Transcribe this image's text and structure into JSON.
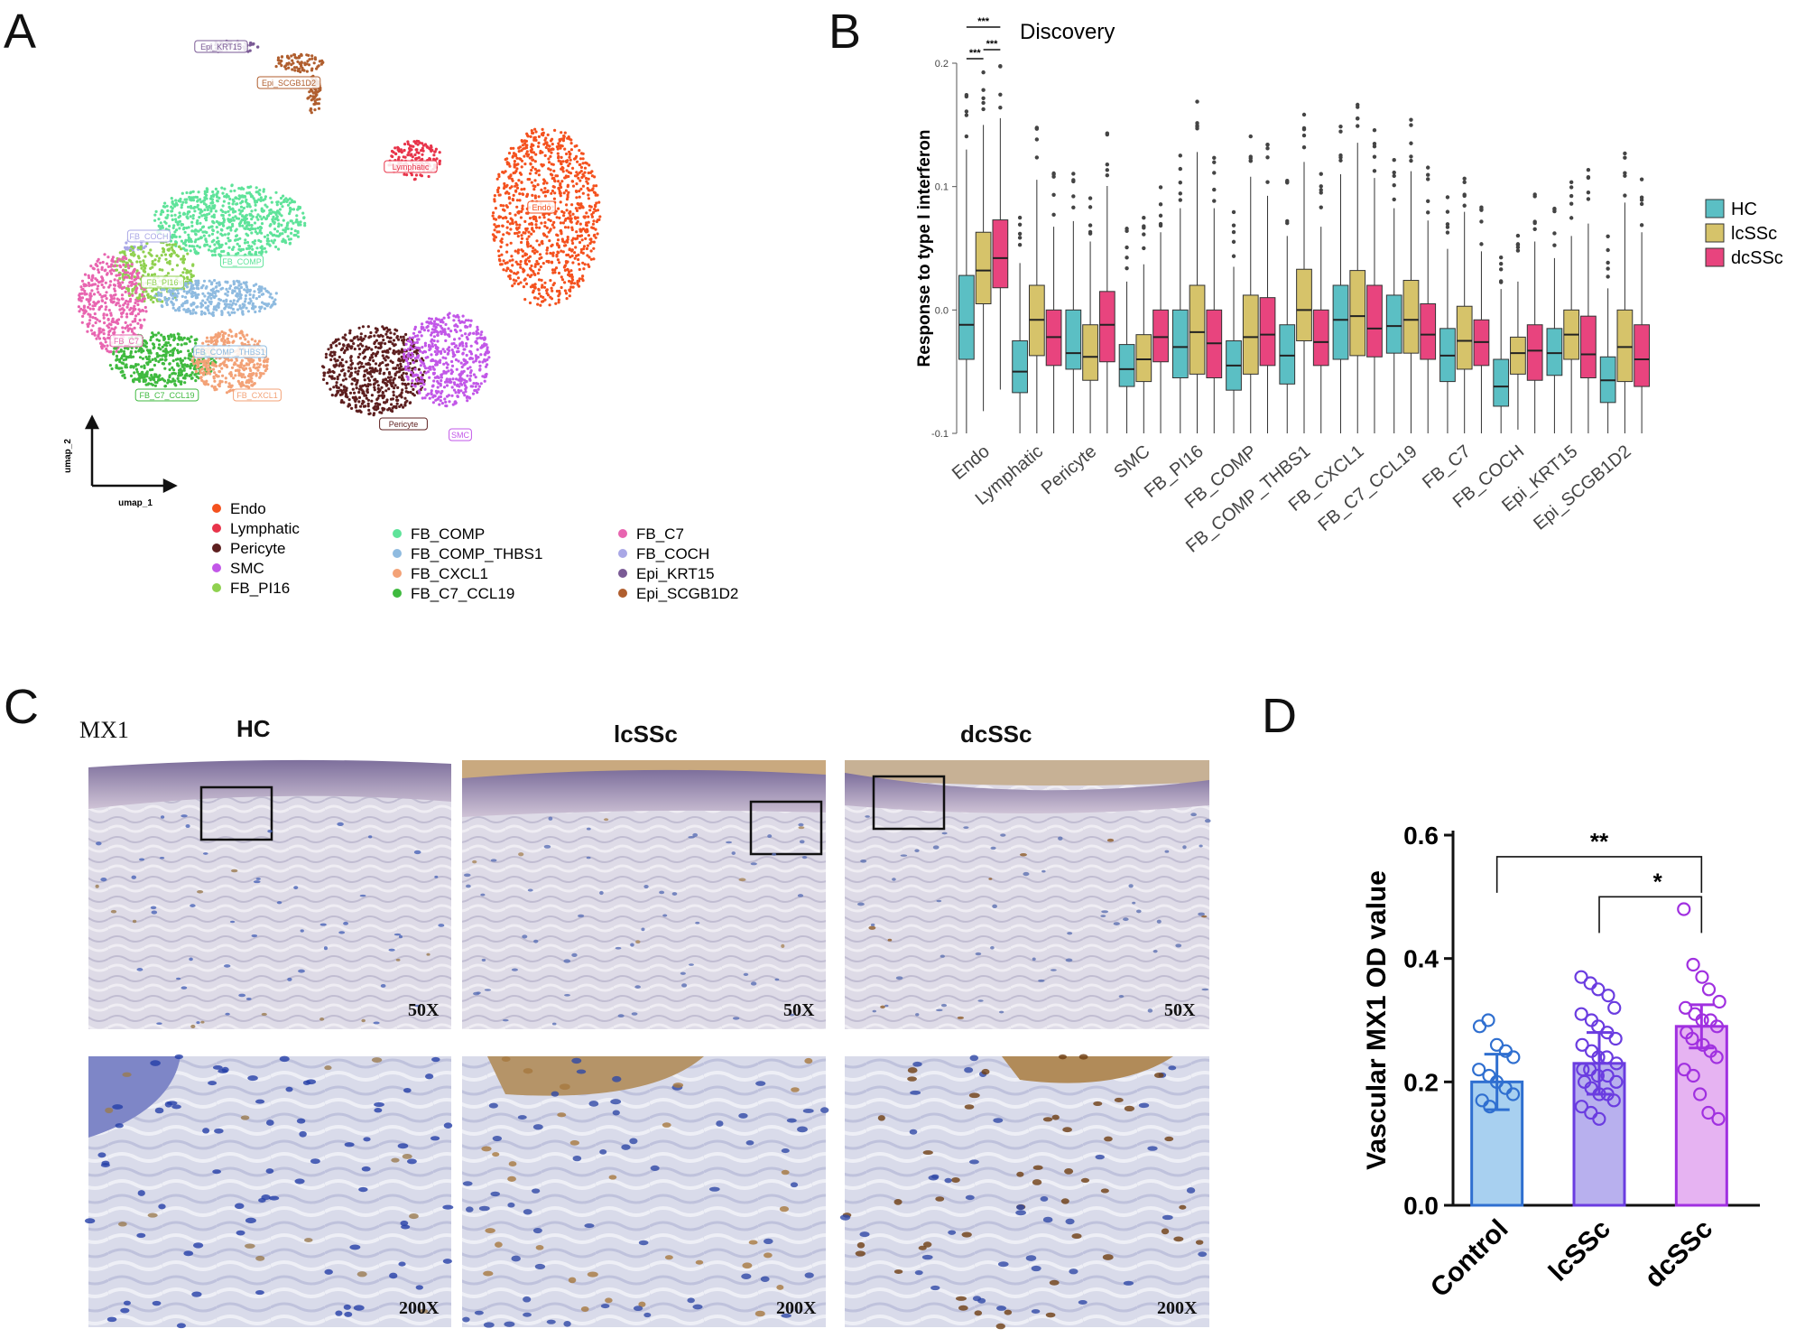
{
  "panel_labels": {
    "a": "A",
    "b": "B",
    "c": "C",
    "d": "D"
  },
  "umap": {
    "axis_x": "umap_1",
    "axis_y": "umap_2",
    "colors": {
      "Endo": "#f4511e",
      "Lymphatic": "#e8344a",
      "Pericyte": "#5d1f1f",
      "SMC": "#c257e8",
      "FB_PI16": "#8fd14f",
      "FB_COMP": "#5fe39a",
      "FB_COMP_THBS1": "#8fbbe0",
      "FB_CXCL1": "#f3a277",
      "FB_C7_CCL19": "#3fba3f",
      "FB_C7": "#e865b0",
      "FB_COCH": "#a9a7e6",
      "Epi_KRT15": "#7a5a95",
      "Epi_SCGB1D2": "#b05e2e"
    },
    "cluster_labels": [
      "Epi_KRT15",
      "Epi_SCGB1D2",
      "Lymphatic",
      "Endo",
      "FB_COCH",
      "FB_COMP",
      "FB_PI16",
      "FB_C7",
      "FB_COMP_THBS1",
      "FB_C7_CCL19",
      "FB_CXCL1",
      "Pericyte",
      "SMC"
    ],
    "legend_col1": [
      "Endo",
      "Lymphatic",
      "Pericyte",
      "SMC",
      "FB_PI16"
    ],
    "legend_col2": [
      "FB_COMP",
      "FB_COMP_THBS1",
      "FB_CXCL1",
      "FB_C7_CCL19"
    ],
    "legend_col3": [
      "FB_C7",
      "FB_COCH",
      "Epi_KRT15",
      "Epi_SCGB1D2"
    ]
  },
  "chart_data": [
    {
      "type": "box",
      "title": "Discovery",
      "ylabel": "Response to type I interferon",
      "ylim": [
        -0.1,
        0.2
      ],
      "yticks": [
        "0.2",
        "0.1",
        "0.0",
        "-0.1"
      ],
      "categories": [
        "Endo",
        "Lymphatic",
        "Pericyte",
        "SMC",
        "FB_PI16",
        "FB_COMP",
        "FB_COMP_THBS1",
        "FB_CXCL1",
        "FB_C7_CCL19",
        "FB_C7",
        "FB_COCH",
        "Epi_KRT15",
        "Epi_SCGB1D2"
      ],
      "series": [
        {
          "name": "HC",
          "color": "#5bbfc4",
          "median": [
            -0.012,
            -0.05,
            -0.035,
            -0.048,
            -0.03,
            -0.045,
            -0.037,
            -0.008,
            -0.013,
            -0.037,
            -0.062,
            -0.035,
            -0.057
          ],
          "q1": [
            -0.04,
            -0.067,
            -0.048,
            -0.062,
            -0.055,
            -0.065,
            -0.06,
            -0.04,
            -0.035,
            -0.058,
            -0.078,
            -0.053,
            -0.075
          ],
          "q3": [
            0.028,
            -0.025,
            0.0,
            -0.028,
            0.0,
            -0.025,
            -0.012,
            0.02,
            0.012,
            -0.015,
            -0.04,
            -0.015,
            -0.038
          ]
        },
        {
          "name": "lcSSc",
          "color": "#d6c36a",
          "median": [
            0.032,
            -0.008,
            -0.038,
            -0.04,
            -0.018,
            -0.022,
            0.0,
            -0.005,
            -0.008,
            -0.025,
            -0.035,
            -0.02,
            -0.03
          ],
          "q1": [
            0.005,
            -0.037,
            -0.057,
            -0.058,
            -0.052,
            -0.052,
            -0.025,
            -0.037,
            -0.035,
            -0.048,
            -0.052,
            -0.04,
            -0.058
          ],
          "q3": [
            0.063,
            0.02,
            -0.012,
            -0.02,
            0.02,
            0.012,
            0.033,
            0.032,
            0.024,
            0.003,
            -0.022,
            0.0,
            0.0
          ],
          "sig": [
            "***",
            "***",
            "***"
          ]
        },
        {
          "name": "dcSSc",
          "color": "#e8447e",
          "median": [
            0.042,
            -0.022,
            -0.012,
            -0.022,
            -0.027,
            -0.02,
            -0.026,
            -0.015,
            -0.02,
            -0.026,
            -0.033,
            -0.036,
            -0.04
          ],
          "q1": [
            0.018,
            -0.045,
            -0.042,
            -0.042,
            -0.055,
            -0.045,
            -0.045,
            -0.038,
            -0.04,
            -0.045,
            -0.057,
            -0.055,
            -0.062
          ],
          "q3": [
            0.073,
            0.0,
            0.015,
            0.0,
            0.0,
            0.01,
            0.0,
            0.02,
            0.005,
            -0.008,
            -0.012,
            -0.005,
            -0.012
          ]
        }
      ]
    },
    {
      "type": "bar",
      "ylabel": "Vascular MX1 OD value",
      "ylim": [
        0.0,
        0.6
      ],
      "yticks": [
        "0.0",
        "0.2",
        "0.4",
        "0.6"
      ],
      "categories": [
        "Control",
        "lcSSc",
        "dcSSc"
      ],
      "values": [
        0.2,
        0.23,
        0.29
      ],
      "error": [
        0.045,
        0.05,
        0.035
      ],
      "colors": [
        "#a8d0f0",
        "#b8b0ee",
        "#e6b3f2"
      ],
      "edge_colors": [
        "#2f6fd0",
        "#6a3ce0",
        "#a030e0"
      ],
      "points": [
        [
          0.29,
          0.3,
          0.26,
          0.25,
          0.24,
          0.22,
          0.21,
          0.2,
          0.19,
          0.18,
          0.17,
          0.16
        ],
        [
          0.37,
          0.36,
          0.35,
          0.34,
          0.32,
          0.31,
          0.3,
          0.29,
          0.28,
          0.27,
          0.26,
          0.25,
          0.24,
          0.24,
          0.23,
          0.22,
          0.22,
          0.21,
          0.21,
          0.2,
          0.2,
          0.19,
          0.18,
          0.18,
          0.17,
          0.16,
          0.15,
          0.14
        ],
        [
          0.48,
          0.39,
          0.37,
          0.35,
          0.33,
          0.32,
          0.31,
          0.3,
          0.3,
          0.29,
          0.28,
          0.27,
          0.26,
          0.25,
          0.24,
          0.22,
          0.21,
          0.18,
          0.15,
          0.14
        ]
      ],
      "significance": [
        {
          "pair": [
            "Control",
            "dcSSc"
          ],
          "label": "**"
        },
        {
          "pair": [
            "lcSSc",
            "dcSSc"
          ],
          "label": "*"
        }
      ]
    }
  ],
  "micrographs": {
    "marker": "MX1",
    "column_heads": [
      "HC",
      "lcSSc",
      "dcSSc"
    ],
    "row1_mag": "50X",
    "row2_mag": "200X"
  }
}
